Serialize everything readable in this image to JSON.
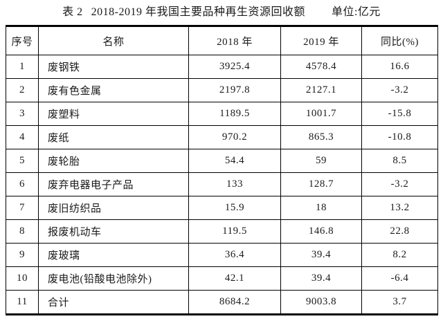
{
  "page": {
    "table_label": "表 2",
    "title": "2018-2019 年我国主要品种再生资源回收额",
    "unit": "单位:亿元"
  },
  "table": {
    "columns": [
      "序号",
      "名称",
      "2018 年",
      "2019 年",
      "同比(%)"
    ],
    "rows": [
      {
        "no": "1",
        "name": "废钢铁",
        "y2018": "3925.4",
        "y2019": "4578.4",
        "yoy": "16.6"
      },
      {
        "no": "2",
        "name": "废有色金属",
        "y2018": "2197.8",
        "y2019": "2127.1",
        "yoy": "-3.2"
      },
      {
        "no": "3",
        "name": "废塑料",
        "y2018": "1189.5",
        "y2019": "1001.7",
        "yoy": "-15.8"
      },
      {
        "no": "4",
        "name": "废纸",
        "y2018": "970.2",
        "y2019": "865.3",
        "yoy": "-10.8"
      },
      {
        "no": "5",
        "name": "废轮胎",
        "y2018": "54.4",
        "y2019": "59",
        "yoy": "8.5"
      },
      {
        "no": "6",
        "name": "废弃电器电子产品",
        "y2018": "133",
        "y2019": "128.7",
        "yoy": "-3.2"
      },
      {
        "no": "7",
        "name": "废旧纺织品",
        "y2018": "15.9",
        "y2019": "18",
        "yoy": "13.2"
      },
      {
        "no": "8",
        "name": "报废机动车",
        "y2018": "119.5",
        "y2019": "146.8",
        "yoy": "22.8"
      },
      {
        "no": "9",
        "name": "废玻璃",
        "y2018": "36.4",
        "y2019": "39.4",
        "yoy": "8.2"
      },
      {
        "no": "10",
        "name": "废电池(铅酸电池除外)",
        "y2018": "42.1",
        "y2019": "39.4",
        "yoy": "-6.4"
      },
      {
        "no": "11",
        "name": "合计",
        "y2018": "8684.2",
        "y2019": "9003.8",
        "yoy": "3.7"
      }
    ]
  }
}
